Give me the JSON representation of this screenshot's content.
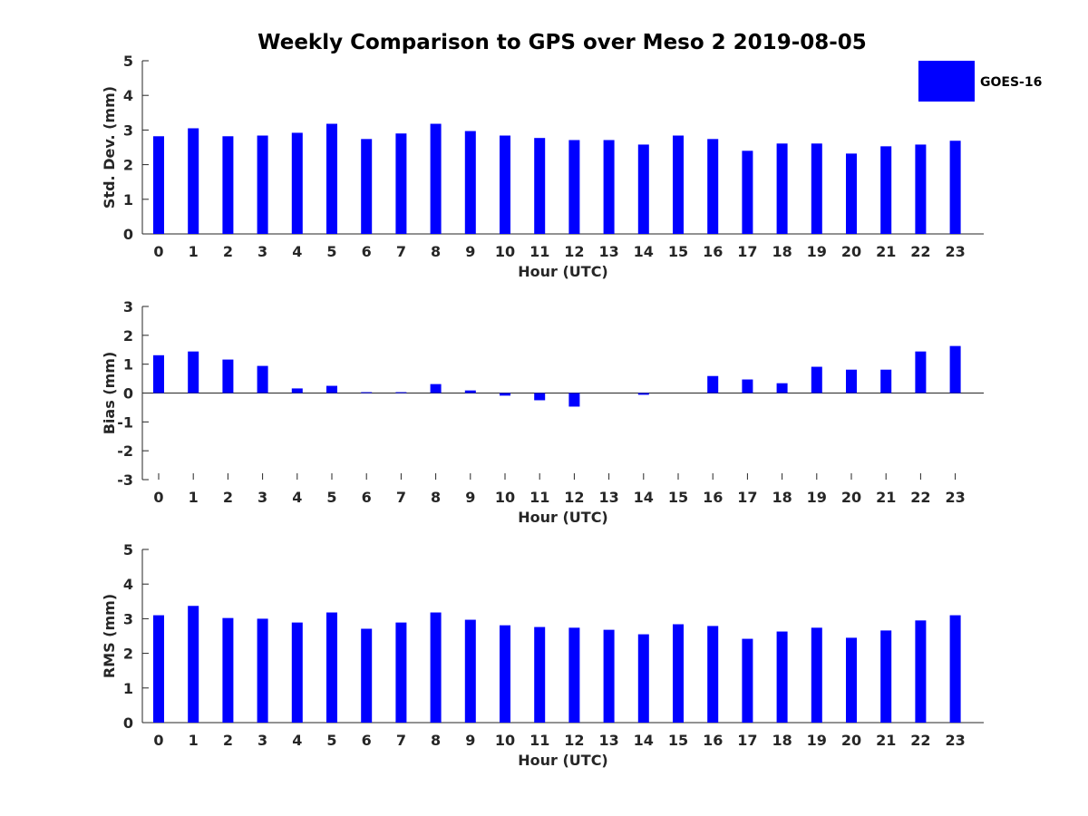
{
  "figure_title": "Weekly Comparison to GPS over Meso 2 2019-08-05",
  "legend": {
    "label": "GOES-16",
    "color": "#0000ff"
  },
  "chart_data": [
    {
      "type": "bar",
      "title": "Weekly Comparison to GPS over Meso 2 2019-08-05",
      "xlabel": "Hour (UTC)",
      "ylabel": "Std. Dev. (mm)",
      "ylim": [
        0,
        5
      ],
      "yticks": [
        0,
        1,
        2,
        3,
        4,
        5
      ],
      "categories": [
        "0",
        "1",
        "2",
        "3",
        "4",
        "5",
        "6",
        "7",
        "8",
        "9",
        "10",
        "11",
        "12",
        "13",
        "14",
        "15",
        "16",
        "17",
        "18",
        "19",
        "20",
        "21",
        "22",
        "23"
      ],
      "series": [
        {
          "name": "GOES-16",
          "color": "#0000ff",
          "values": [
            2.82,
            3.05,
            2.82,
            2.84,
            2.92,
            3.18,
            2.74,
            2.9,
            3.18,
            2.97,
            2.84,
            2.77,
            2.71,
            2.71,
            2.58,
            2.84,
            2.74,
            2.4,
            2.61,
            2.61,
            2.32,
            2.53,
            2.58,
            2.69
          ]
        }
      ]
    },
    {
      "type": "bar",
      "title": "",
      "xlabel": "Hour (UTC)",
      "ylabel": "Bias (mm)",
      "ylim": [
        -3,
        3
      ],
      "yticks": [
        -3,
        -2,
        -1,
        0,
        1,
        2,
        3
      ],
      "categories": [
        "0",
        "1",
        "2",
        "3",
        "4",
        "5",
        "6",
        "7",
        "8",
        "9",
        "10",
        "11",
        "12",
        "13",
        "14",
        "15",
        "16",
        "17",
        "18",
        "19",
        "20",
        "21",
        "22",
        "23"
      ],
      "series": [
        {
          "name": "GOES-16",
          "color": "#0000ff",
          "values": [
            1.31,
            1.44,
            1.16,
            0.94,
            0.16,
            0.25,
            0.03,
            0.03,
            0.31,
            0.09,
            -0.09,
            -0.25,
            -0.47,
            0.0,
            -0.06,
            0.0,
            0.59,
            0.47,
            0.34,
            0.91,
            0.81,
            0.81,
            1.44,
            1.63
          ]
        }
      ]
    },
    {
      "type": "bar",
      "title": "",
      "xlabel": "Hour (UTC)",
      "ylabel": "RMS (mm)",
      "ylim": [
        0,
        5
      ],
      "yticks": [
        0,
        1,
        2,
        3,
        4,
        5
      ],
      "categories": [
        "0",
        "1",
        "2",
        "3",
        "4",
        "5",
        "6",
        "7",
        "8",
        "9",
        "10",
        "11",
        "12",
        "13",
        "14",
        "15",
        "16",
        "17",
        "18",
        "19",
        "20",
        "21",
        "22",
        "23"
      ],
      "series": [
        {
          "name": "GOES-16",
          "color": "#0000ff",
          "values": [
            3.1,
            3.37,
            3.02,
            3.0,
            2.89,
            3.18,
            2.71,
            2.89,
            3.18,
            2.97,
            2.81,
            2.76,
            2.74,
            2.68,
            2.55,
            2.84,
            2.79,
            2.42,
            2.63,
            2.74,
            2.45,
            2.66,
            2.95,
            3.1
          ]
        }
      ]
    }
  ]
}
